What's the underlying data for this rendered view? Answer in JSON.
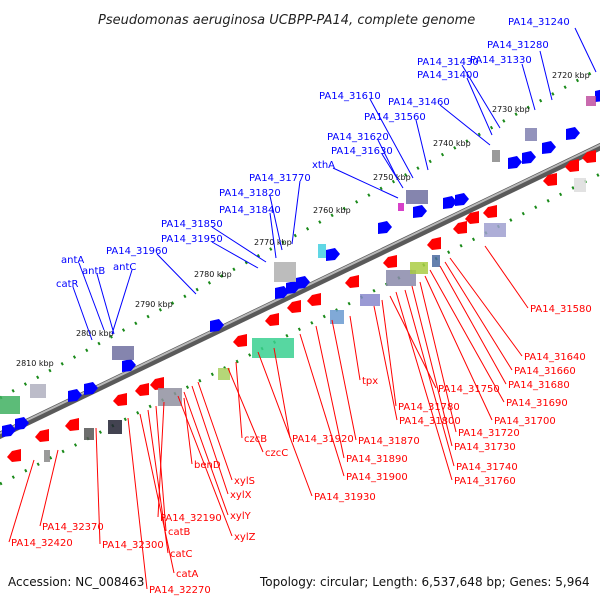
{
  "title": "Pseudomonas aeruginosa UCBPP-PA14, complete genome",
  "footer": {
    "accession": "Accession: NC_008463",
    "summary": "Topology: circular; Length: 6,537,648 bp; Genes: 5,964"
  },
  "colors": {
    "forward": "#0000ff",
    "reverse": "#ff0000",
    "backbone": "#7a7a7a",
    "tick": "#1a8a1a"
  },
  "ticks": [
    "2720 kbp",
    "2730 kbp",
    "2740 kbp",
    "2750 kbp",
    "2760 kbp",
    "2770 kbp",
    "2780 kbp",
    "2790 kbp",
    "2800 kbp",
    "2810 kbp"
  ],
  "top_labels": [
    "PA14_31240",
    "PA14_31280",
    "PA14_31330",
    "PA14_31430",
    "PA14_31400",
    "PA14_31460",
    "PA14_31560",
    "PA14_31610",
    "PA14_31620",
    "PA14_31630",
    "xthA",
    "PA14_31770",
    "PA14_31820",
    "PA14_31840",
    "PA14_31850",
    "PA14_31950",
    "PA14_31960",
    "antA",
    "antB",
    "antC",
    "catR"
  ],
  "bottom_labels": [
    "PA14_31580",
    "PA14_31640",
    "PA14_31660",
    "PA14_31680",
    "PA14_31690",
    "PA14_31700",
    "PA14_31720",
    "PA14_31730",
    "PA14_31740",
    "PA14_31760",
    "PA14_31750",
    "PA14_31780",
    "PA14_31800",
    "tpx",
    "PA14_31870",
    "PA14_31890",
    "PA14_31900",
    "PA14_31920",
    "PA14_31930",
    "czcB",
    "czcC",
    "xylS",
    "xylX",
    "xylY",
    "xylZ",
    "benD",
    "PA14_32190",
    "catB",
    "catC",
    "catA",
    "PA14_32270",
    "PA14_32300",
    "PA14_32370",
    "PA14_32420"
  ]
}
